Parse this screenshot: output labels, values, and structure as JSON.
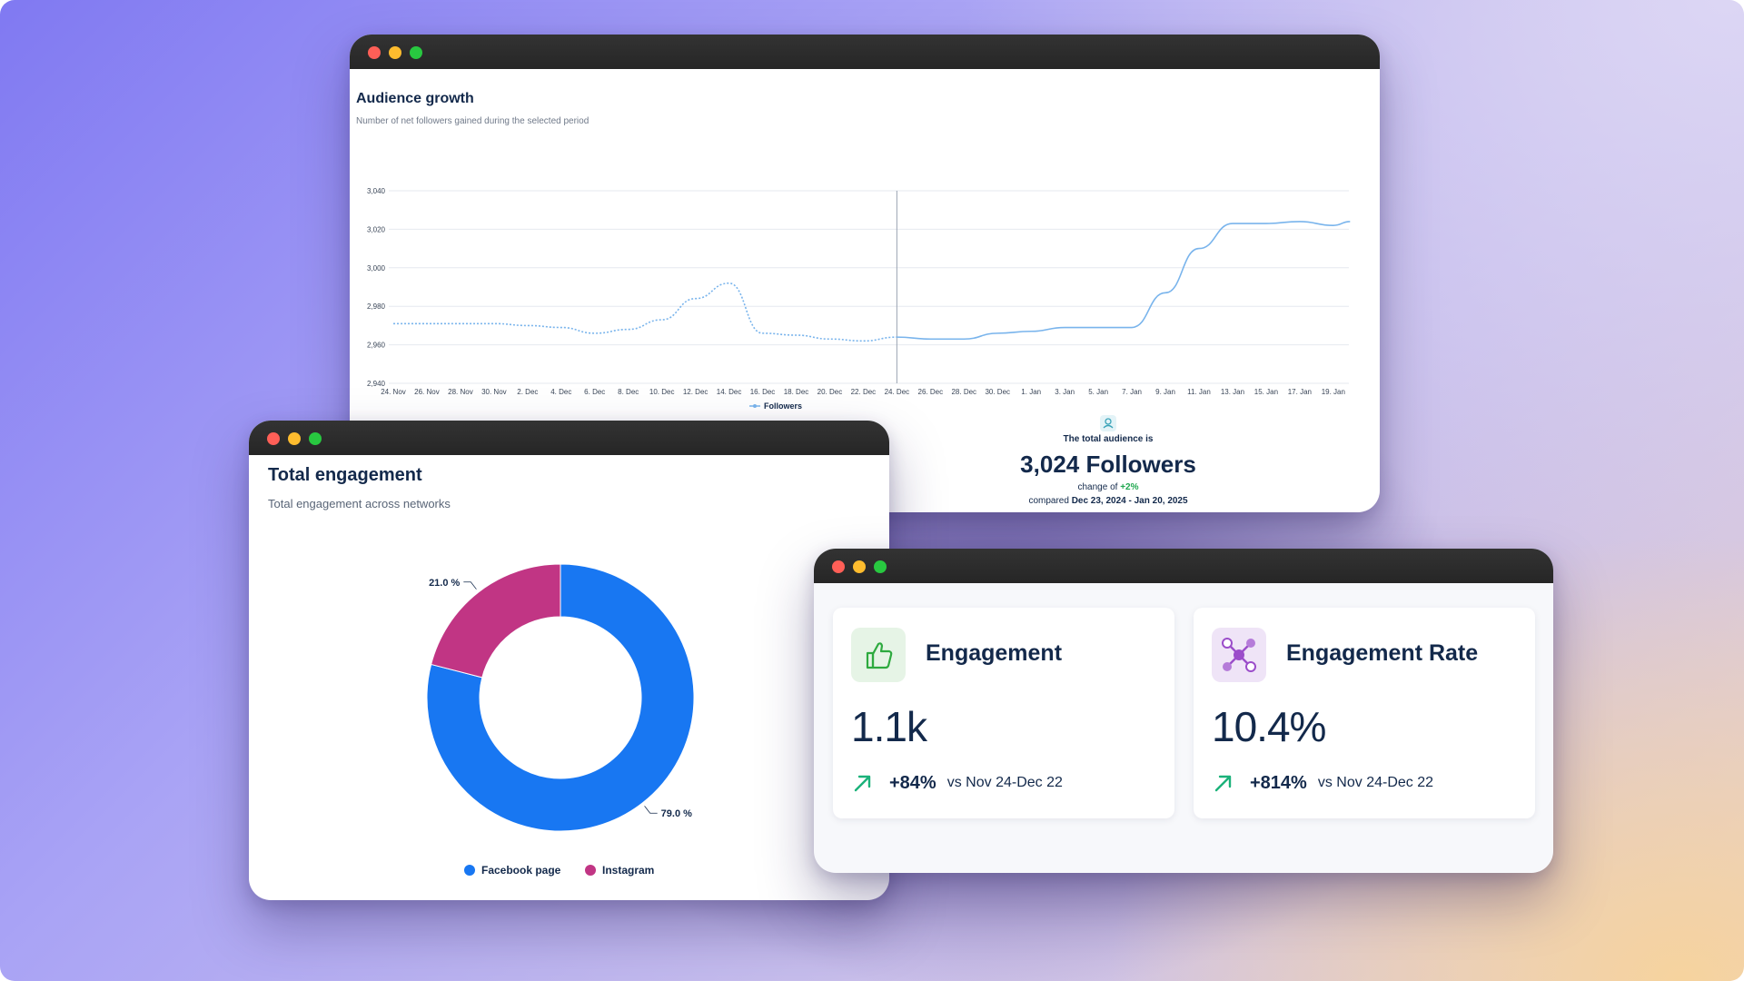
{
  "audience_growth": {
    "title": "Audience growth",
    "subtitle": "Number of net followers gained during the selected period",
    "legend_label": "Followers",
    "total_label": "The total audience is",
    "total_value": "3,024 Followers",
    "change_prefix": "change of",
    "change_value": "+2%",
    "compared_prefix": "compared",
    "compared_range": "Dec 23, 2024 - Jan 20, 2025",
    "icon": "audience-icon",
    "chart_data": {
      "type": "line",
      "ylim": [
        2940,
        3040
      ],
      "y_ticks": [
        "3,040",
        "3,020",
        "3,000",
        "2,980",
        "2,960",
        "2,940"
      ],
      "x_ticks": [
        "24. Nov",
        "26. Nov",
        "28. Nov",
        "30. Nov",
        "2. Dec",
        "4. Dec",
        "6. Dec",
        "8. Dec",
        "10. Dec",
        "12. Dec",
        "14. Dec",
        "16. Dec",
        "18. Dec",
        "20. Dec",
        "22. Dec",
        "24. Dec",
        "26. Dec",
        "28. Dec",
        "30. Dec",
        "1. Jan",
        "3. Jan",
        "5. Jan",
        "7. Jan",
        "9. Jan",
        "11. Jan",
        "13. Jan",
        "15. Jan",
        "17. Jan",
        "19. Jan"
      ],
      "series": [
        {
          "name": "Followers",
          "style": "dotted",
          "x_index": [
            0,
            1,
            2,
            3,
            4,
            5,
            6,
            7,
            8,
            9,
            10,
            11,
            12,
            13,
            14,
            15
          ],
          "values": [
            2971,
            2971,
            2971,
            2971,
            2970,
            2969,
            2966,
            2968,
            2973,
            2984,
            2992,
            2966,
            2965,
            2963,
            2962,
            2964
          ]
        },
        {
          "name": "Followers",
          "style": "solid",
          "x_index": [
            15,
            16,
            17,
            18,
            19,
            20,
            21,
            22,
            23,
            24,
            25,
            26,
            27,
            28,
            28.5
          ],
          "values": [
            2964,
            2963,
            2963,
            2966,
            2967,
            2969,
            2969,
            2969,
            2987,
            3010,
            3023,
            3023,
            3024,
            3022,
            3024
          ]
        }
      ],
      "color": "#79b4ec"
    }
  },
  "total_engagement": {
    "title": "Total engagement",
    "subtitle": "Total engagement across networks",
    "chart_data": {
      "type": "pie",
      "categories": [
        "Facebook page",
        "Instagram"
      ],
      "values": [
        79.0,
        21.0
      ],
      "labels": [
        "79.0 %",
        "21.0 %"
      ],
      "colors": [
        "#1877f2",
        "#c13584"
      ]
    }
  },
  "metrics": {
    "engagement": {
      "label": "Engagement",
      "value": "1.1k",
      "delta": "+84%",
      "comparison": "vs Nov 24-Dec 22",
      "icon": "thumbs-up-icon",
      "icon_color": "#2eaa3f",
      "icon_bg": "#e6f4e6"
    },
    "engagement_rate": {
      "label": "Engagement Rate",
      "value": "10.4%",
      "delta": "+814%",
      "comparison": "vs Nov 24-Dec 22",
      "icon": "network-icon",
      "icon_color": "#9b4dca",
      "icon_bg": "#efe4f7"
    },
    "arrow_color": "#1bb27a"
  }
}
